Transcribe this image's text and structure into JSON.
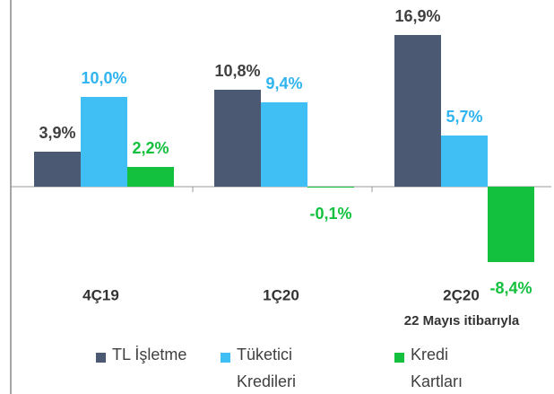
{
  "chart_data": {
    "type": "bar",
    "categories": [
      "4Ç19",
      "1Ç20",
      "2Ç20"
    ],
    "category_note": "22 Mayıs itibarıyla",
    "series": [
      {
        "name": "TL İşletme",
        "color": "#4b5a72",
        "label_color": "#404040",
        "values": [
          3.9,
          10.8,
          16.9
        ],
        "value_labels": [
          "3,9%",
          "10,8%",
          "16,9%"
        ]
      },
      {
        "name": "Tüketici Kredileri",
        "color": "#40bff5",
        "label_color": "#2fb4f0",
        "values": [
          10.0,
          9.4,
          5.7
        ],
        "value_labels": [
          "10,0%",
          "9,4%",
          "5,7%"
        ]
      },
      {
        "name": "Kredi Kartları",
        "color": "#13c13e",
        "label_color": "#13c13e",
        "values": [
          2.2,
          -0.1,
          -8.4
        ],
        "value_labels": [
          "2,2%",
          "-0,1%",
          "-8,4%"
        ]
      }
    ]
  }
}
